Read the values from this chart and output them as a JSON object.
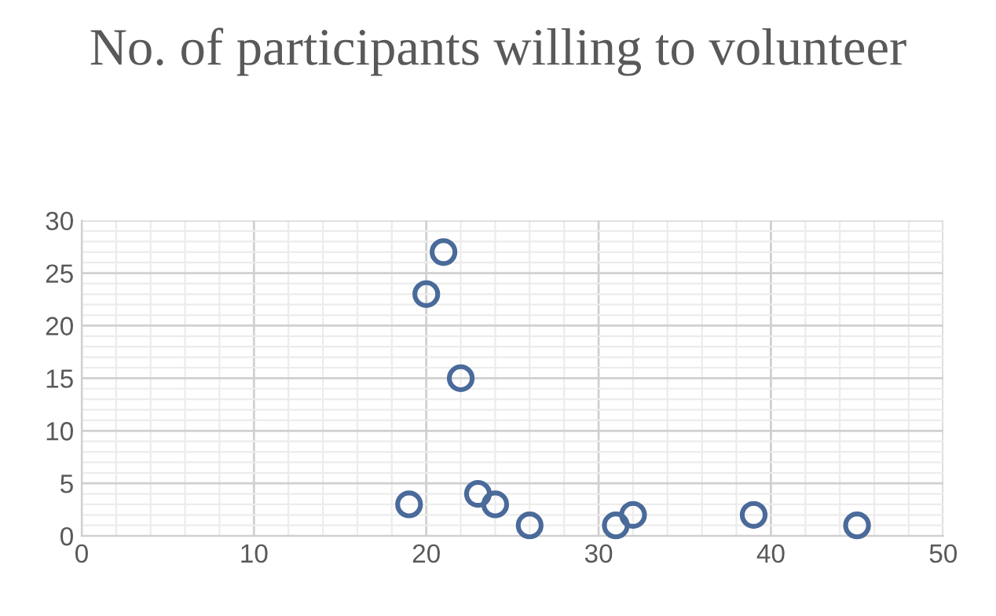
{
  "chart_data": {
    "type": "scatter",
    "title": "No. of participants willing to volunteer",
    "x": [
      21,
      20,
      22,
      19,
      23,
      24,
      26,
      31,
      32,
      39,
      45
    ],
    "values": [
      27,
      23,
      15,
      3,
      4,
      3,
      1,
      1,
      2,
      2,
      1
    ],
    "color": "#4a6a9a",
    "marker": "circle",
    "xlim": [
      0,
      50
    ],
    "xticks": [
      0,
      10,
      20,
      30,
      40,
      50
    ],
    "ylim": [
      0,
      30
    ],
    "yticks": [
      0,
      5,
      10,
      15,
      20,
      25,
      30
    ],
    "grid": true
  }
}
